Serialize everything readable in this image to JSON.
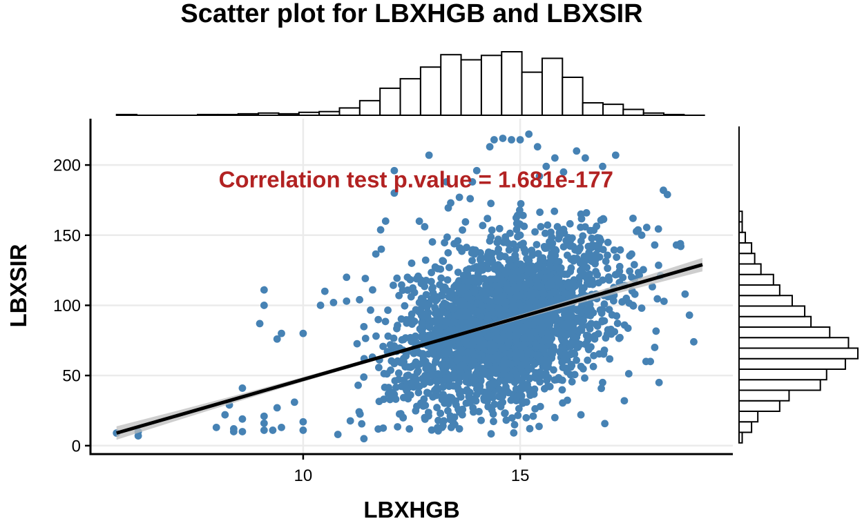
{
  "chart_data": {
    "type": "scatter",
    "title": "Scatter plot for LBXHGB and LBXSIR",
    "xlabel": "LBXHGB",
    "ylabel": "LBXSIR",
    "xlim": [
      5.1,
      19.9
    ],
    "ylim": [
      -6,
      233
    ],
    "x_ticks": [
      10,
      15
    ],
    "x_tick_labels": [
      "10",
      "15"
    ],
    "y_ticks": [
      0,
      50,
      100,
      150,
      200
    ],
    "y_tick_labels": [
      "0",
      "50",
      "100",
      "150",
      "200"
    ],
    "grid": true,
    "annotation": {
      "text": "Correlation test p.value = 1.681e-177",
      "x": 12.6,
      "y": 184,
      "color": "#B22222"
    },
    "point_color": "#4682B4",
    "regression_line": {
      "x0": 5.7,
      "y0": 9,
      "x1": 19.2,
      "y1": 129,
      "color": "#000000",
      "band_color": "#BEBEBE"
    },
    "points": [
      [
        5.7,
        9
      ],
      [
        6.2,
        7
      ],
      [
        6.2,
        10
      ],
      [
        8.0,
        13
      ],
      [
        8.2,
        22
      ],
      [
        8.3,
        29
      ],
      [
        8.4,
        12
      ],
      [
        8.4,
        10
      ],
      [
        8.6,
        41
      ],
      [
        8.6,
        19
      ],
      [
        8.6,
        10
      ],
      [
        9.0,
        87
      ],
      [
        9.1,
        100
      ],
      [
        9.1,
        111
      ],
      [
        9.1,
        21
      ],
      [
        9.1,
        16
      ],
      [
        9.1,
        11
      ],
      [
        9.3,
        11
      ],
      [
        9.4,
        76
      ],
      [
        9.5,
        80
      ],
      [
        9.4,
        27
      ],
      [
        9.5,
        13
      ],
      [
        9.8,
        31
      ],
      [
        10.0,
        80
      ],
      [
        10.0,
        11
      ],
      [
        10.0,
        17
      ],
      [
        10.5,
        110
      ],
      [
        10.4,
        100
      ],
      [
        10.7,
        102
      ],
      [
        10.8,
        8
      ],
      [
        11.0,
        120
      ],
      [
        11.0,
        103
      ],
      [
        11.3,
        104
      ],
      [
        11.4,
        5
      ],
      [
        11.6,
        111
      ],
      [
        11.8,
        140
      ],
      [
        11.9,
        160
      ],
      [
        12.1,
        196
      ],
      [
        12.1,
        180
      ],
      [
        12.5,
        130
      ],
      [
        12.8,
        156
      ],
      [
        12.9,
        207
      ],
      [
        13.3,
        188
      ],
      [
        13.4,
        173
      ],
      [
        13.6,
        177
      ],
      [
        13.9,
        188
      ],
      [
        14.0,
        196
      ],
      [
        14.3,
        213
      ],
      [
        14.4,
        218
      ],
      [
        14.6,
        219
      ],
      [
        14.8,
        218
      ],
      [
        15.0,
        218
      ],
      [
        15.2,
        222
      ],
      [
        15.4,
        213
      ],
      [
        15.6,
        199
      ],
      [
        15.8,
        205
      ],
      [
        16.0,
        195
      ],
      [
        16.3,
        210
      ],
      [
        16.5,
        205
      ],
      [
        16.9,
        199
      ],
      [
        17.2,
        207
      ],
      [
        17.6,
        162
      ],
      [
        17.8,
        150
      ],
      [
        18.1,
        143
      ],
      [
        18.3,
        182
      ],
      [
        18.6,
        143
      ],
      [
        18.7,
        142
      ],
      [
        18.8,
        108
      ],
      [
        18.9,
        93
      ],
      [
        19.0,
        74
      ],
      [
        18.2,
        45
      ],
      [
        15.3,
        21
      ],
      [
        15.8,
        20
      ],
      [
        16.4,
        22
      ],
      [
        13.6,
        12
      ],
      [
        14.1,
        18
      ],
      [
        12.6,
        45
      ],
      [
        12.8,
        20
      ],
      [
        13.2,
        13
      ],
      [
        16.9,
        45
      ],
      [
        17.4,
        32
      ],
      [
        17.9,
        60
      ],
      [
        18.1,
        70
      ],
      [
        18.0,
        60
      ],
      [
        17.8,
        98
      ],
      [
        17.6,
        100
      ],
      [
        14.9,
        115
      ],
      [
        15.0,
        150
      ],
      [
        14.5,
        140
      ],
      [
        14.0,
        120
      ],
      [
        13.6,
        110
      ],
      [
        16.5,
        132
      ],
      [
        16.9,
        118
      ],
      [
        16.8,
        140
      ],
      [
        16.4,
        165
      ]
    ],
    "x_histogram": {
      "start": 5.7,
      "bin_width": 0.467,
      "counts": [
        1,
        0,
        0,
        0,
        1,
        1,
        2,
        3,
        2,
        4,
        5,
        10,
        20,
        37,
        50,
        66,
        83,
        76,
        82,
        87,
        59,
        78,
        52,
        17,
        15,
        8,
        3,
        1,
        0
      ]
    },
    "y_histogram": {
      "start": 2,
      "bin_width": 7.5,
      "counts": [
        1,
        4,
        6,
        13,
        16,
        26,
        28,
        34,
        38,
        35,
        29,
        23,
        21,
        17,
        13,
        11,
        7,
        5,
        4,
        2,
        1,
        1,
        0,
        0,
        0,
        0,
        0,
        0,
        0,
        0
      ]
    }
  }
}
